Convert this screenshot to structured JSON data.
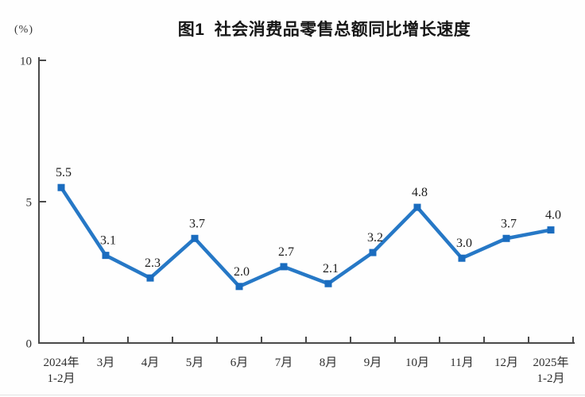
{
  "chart_data": {
    "type": "line",
    "title": "图1 社会消费品零售总额同比增长速度",
    "ylabel": "(%)",
    "xlabel": "",
    "categories": [
      "2024年\n1-2月",
      "3月",
      "4月",
      "5月",
      "6月",
      "7月",
      "8月",
      "9月",
      "10月",
      "11月",
      "12月",
      "2025年\n1-2月"
    ],
    "values": [
      5.5,
      3.1,
      2.3,
      3.7,
      2.0,
      2.7,
      2.1,
      3.2,
      4.8,
      3.0,
      3.7,
      4.0
    ],
    "ylim": [
      0,
      10
    ],
    "yticks": [
      0,
      5,
      10
    ],
    "grid": false,
    "legend": "none",
    "line_color": "#2678C6",
    "marker_color": "#1A6CBF",
    "axis_color": "#4a4a4a",
    "label_color": "#1c1c1c"
  }
}
